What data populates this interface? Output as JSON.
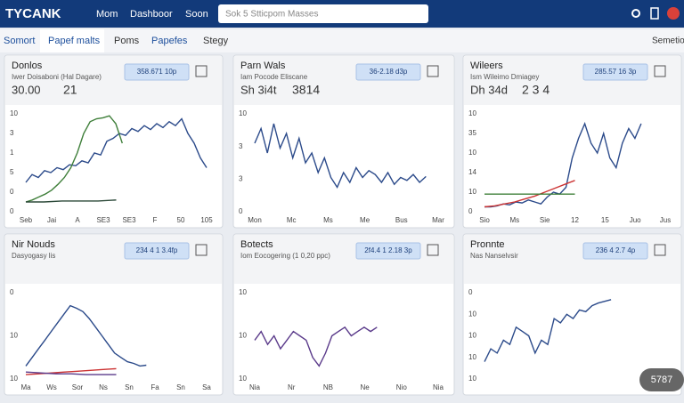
{
  "header": {
    "logo": "TYCANK",
    "nav": [
      "Mom",
      "Dashboor",
      "Soon"
    ],
    "search": "Sok 5 Stticpom Masses"
  },
  "tabs": {
    "items": [
      "Somort",
      "Papef malts",
      "Poms",
      "Papefes",
      "Stegy"
    ],
    "right": "Semetio"
  },
  "panels": [
    {
      "title": "Donlos",
      "subtitle": "Iwer Doisaboni (Hal Dagare)",
      "stats": [
        "30.00",
        "21"
      ],
      "badge": "358.671 10p",
      "x_labels": [
        "Seb",
        "Jai",
        "A",
        "SE3",
        "SE3",
        "F",
        "50",
        "105"
      ],
      "y_labels": [
        "10",
        "3",
        "1",
        "5",
        "0",
        "0"
      ],
      "ylim": [
        0,
        100
      ],
      "series": [
        {
          "color": "#2b4a8a",
          "values": [
            30,
            38,
            35,
            42,
            40,
            45,
            43,
            48,
            47,
            52,
            50,
            60,
            58,
            72,
            75,
            80,
            78,
            85,
            82,
            88,
            84,
            90,
            86,
            92,
            88,
            95,
            80,
            70,
            55,
            45
          ]
        },
        {
          "color": "#3f7f3a",
          "values": [
            10,
            12,
            15,
            18,
            22,
            28,
            35,
            45,
            60,
            80,
            92,
            95,
            96,
            98,
            90,
            70
          ]
        },
        {
          "color": "#2d4a3a",
          "values": [
            10,
            10,
            11,
            11,
            11,
            12
          ]
        }
      ]
    },
    {
      "title": "Parn Wals",
      "subtitle": "Iam Pocode Eliscane",
      "stats": [
        "Sh 3i4t",
        "3814"
      ],
      "badge": "36-2.18 d3p",
      "x_labels": [
        "Mon",
        "Mc",
        "Ms",
        "Me",
        "Bus",
        "Mar"
      ],
      "y_labels": [
        "10",
        "3",
        "3",
        "0"
      ],
      "ylim": [
        0,
        100
      ],
      "series": [
        {
          "color": "#2b4a8a",
          "values": [
            70,
            85,
            60,
            90,
            65,
            80,
            55,
            75,
            50,
            60,
            40,
            55,
            35,
            25,
            40,
            30,
            45,
            35,
            42,
            38,
            30,
            40,
            28,
            35,
            32,
            38,
            30,
            36
          ]
        }
      ]
    },
    {
      "title": "Wileers",
      "subtitle": "Ism Wileimo Dmiagey",
      "stats": [
        "Dh 34d",
        "2 3 4"
      ],
      "badge": "285.57 16 3p",
      "x_labels": [
        "Sio",
        "Ms",
        "Sie",
        "12",
        "15",
        "Juo",
        "Jus"
      ],
      "y_labels": [
        "10",
        "35",
        "10",
        "14",
        "10",
        "0"
      ],
      "ylim": [
        0,
        100
      ],
      "series": [
        {
          "color": "#2b4a8a",
          "values": [
            5,
            5,
            6,
            8,
            7,
            10,
            9,
            12,
            10,
            8,
            15,
            20,
            18,
            25,
            55,
            75,
            90,
            70,
            60,
            80,
            55,
            45,
            70,
            85,
            75,
            90
          ]
        },
        {
          "color": "#cc3333",
          "values": [
            5,
            6,
            8,
            10,
            13,
            16,
            20,
            24,
            28,
            32
          ]
        },
        {
          "color": "#3f7f3a",
          "values": [
            18,
            18,
            18,
            18
          ]
        }
      ]
    },
    {
      "title": "Nir Nouds",
      "subtitle": "Dasyogasy lis",
      "stats": [],
      "badge": "234 4 1 3.4fp",
      "x_labels": [
        "Ma",
        "Ws",
        "Sor",
        "Ns",
        "Sn",
        "Fa",
        "Sn",
        "Sa"
      ],
      "y_labels": [
        "0",
        "10",
        "10"
      ],
      "ylim": [
        0,
        100
      ],
      "series": [
        {
          "color": "#2b4a8a",
          "values": [
            15,
            25,
            35,
            45,
            55,
            65,
            75,
            85,
            82,
            78,
            70,
            60,
            50,
            40,
            30,
            25,
            20,
            18,
            15,
            16
          ]
        },
        {
          "color": "#cc3333",
          "values": [
            5,
            6,
            7,
            8,
            9,
            10,
            11,
            12
          ]
        },
        {
          "color": "#5a3a8a",
          "values": [
            8,
            7,
            6,
            6,
            5,
            5,
            5
          ]
        }
      ]
    },
    {
      "title": "Botects",
      "subtitle": "Iom Eocogering (1 0,20 ppc)",
      "stats": [],
      "badge": "2f4.4 1 2.18 3p",
      "x_labels": [
        "Nia",
        "Nr",
        "NB",
        "Ne",
        "Nio",
        "Nia"
      ],
      "y_labels": [
        "10",
        "10",
        "10"
      ],
      "ylim": [
        0,
        100
      ],
      "series": [
        {
          "color": "#5a3a8a",
          "values": [
            45,
            55,
            40,
            50,
            35,
            45,
            55,
            50,
            45,
            25,
            15,
            30,
            50,
            55,
            60,
            50,
            55,
            60,
            55,
            60
          ]
        }
      ]
    },
    {
      "title": "Pronnte",
      "subtitle": "Nas Nanselvsir",
      "stats": [],
      "badge": "236 4 2.7 4p",
      "x_labels": [],
      "y_labels": [
        "0",
        "10",
        "10",
        "10",
        "10"
      ],
      "ylim": [
        0,
        100
      ],
      "series": [
        {
          "color": "#2b4a8a",
          "values": [
            20,
            35,
            30,
            45,
            40,
            60,
            55,
            50,
            30,
            45,
            40,
            70,
            65,
            75,
            70,
            80,
            78,
            85,
            88,
            90,
            92
          ]
        }
      ]
    }
  ],
  "corner_badge": "5787"
}
